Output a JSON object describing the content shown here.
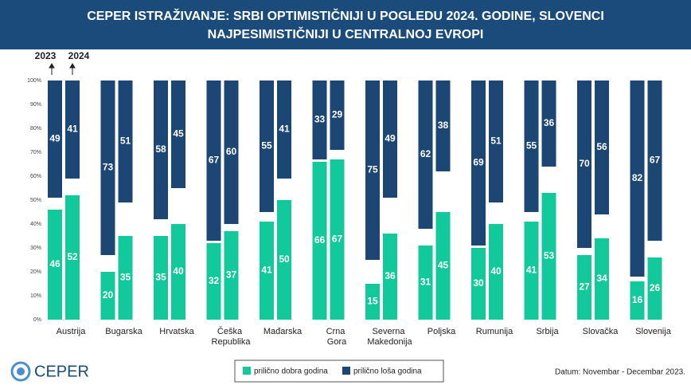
{
  "chart_data": {
    "type": "bar",
    "title": "CEPER ISTRAŽIVANJE: SRBI OPTIMISTIČNIJI U POGLEDU 2024. GODINE, SLOVENCI",
    "subtitle": "NAJPESIMISTIČNIJI U CENTRALNOJ EVROPI",
    "years": [
      "2023",
      "2024"
    ],
    "categories": [
      "Austrija",
      "Bugarska",
      "Hrvatska",
      "Češka Republika",
      "Mađarska",
      "Crna Gora",
      "Severna Makedonija",
      "Poljska",
      "Rumunija",
      "Srbija",
      "Slovačka",
      "Slovenija"
    ],
    "series": [
      {
        "name": "prilično dobra godina",
        "color": "#12c99b",
        "values": [
          [
            46,
            52
          ],
          [
            20,
            35
          ],
          [
            35,
            40
          ],
          [
            32,
            37
          ],
          [
            41,
            50
          ],
          [
            66,
            67
          ],
          [
            15,
            36
          ],
          [
            31,
            45
          ],
          [
            30,
            40
          ],
          [
            41,
            53
          ],
          [
            27,
            34
          ],
          [
            16,
            26
          ]
        ]
      },
      {
        "name": "prilično loša godina",
        "color": "#1c4673",
        "values": [
          [
            49,
            41
          ],
          [
            73,
            51
          ],
          [
            58,
            45
          ],
          [
            67,
            60
          ],
          [
            55,
            41
          ],
          [
            33,
            29
          ],
          [
            75,
            49
          ],
          [
            62,
            38
          ],
          [
            69,
            51
          ],
          [
            55,
            36
          ],
          [
            70,
            56
          ],
          [
            82,
            67
          ]
        ]
      }
    ],
    "ylim": [
      0,
      100
    ],
    "yticks": [
      {
        "value": 0,
        "label": "0%"
      },
      {
        "value": 10,
        "label": "10%"
      },
      {
        "value": 20,
        "label": "20%"
      },
      {
        "value": 30,
        "label": "30%"
      },
      {
        "value": 40,
        "label": "40%"
      },
      {
        "value": 50,
        "label": "50%"
      },
      {
        "value": 60,
        "label": "60%"
      },
      {
        "value": 70,
        "label": "70%"
      },
      {
        "value": 80,
        "label": "80%"
      },
      {
        "value": 90,
        "label": "90%"
      },
      {
        "value": 100,
        "label": "100%"
      }
    ],
    "grid": false,
    "legend": "bottom",
    "logo": "CEPER",
    "note": "Datum: Novembar - Decembar 2023."
  }
}
